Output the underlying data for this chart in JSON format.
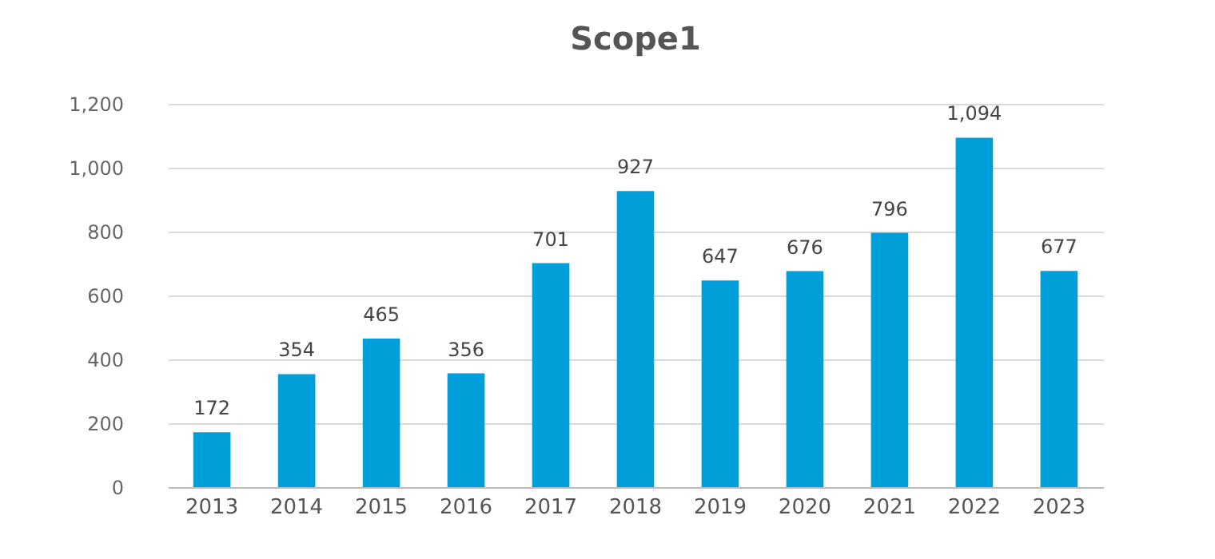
{
  "chart_data": {
    "type": "bar",
    "title": "Scope1",
    "categories": [
      "2013",
      "2014",
      "2015",
      "2016",
      "2017",
      "2018",
      "2019",
      "2020",
      "2021",
      "2022",
      "2023"
    ],
    "values": [
      172,
      354,
      465,
      356,
      701,
      927,
      647,
      676,
      796,
      1094,
      677
    ],
    "value_labels": [
      "172",
      "354",
      "465",
      "356",
      "701",
      "927",
      "647",
      "676",
      "796",
      "1,094",
      "677"
    ],
    "color": "#009fd9",
    "ylim": [
      0,
      1200
    ],
    "yticks": [
      0,
      200,
      400,
      600,
      800,
      {
        "value": 1000,
        "label": "1,000"
      },
      {
        "value": 1200,
        "label": "1,200"
      }
    ],
    "grid": "y"
  }
}
